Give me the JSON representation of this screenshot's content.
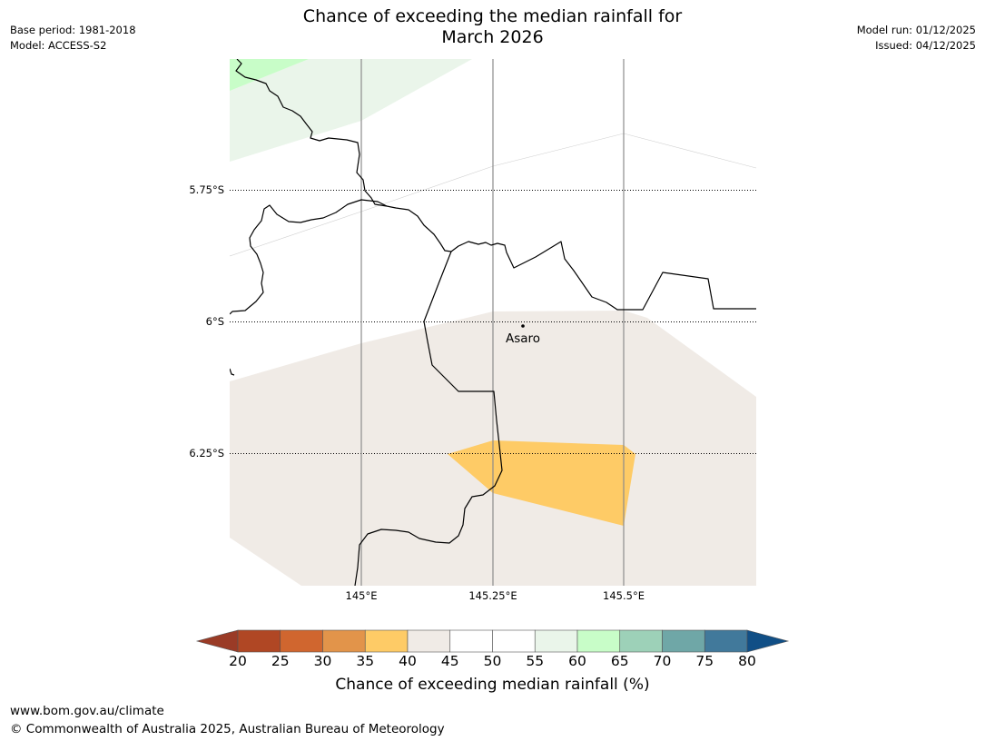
{
  "title": {
    "line1": "Chance of exceeding the median rainfall for",
    "line2": "March 2026"
  },
  "meta_left": {
    "base_period": "Base period: 1981-2018",
    "model": "Model: ACCESS-S2"
  },
  "meta_right": {
    "model_run": "Model run: 01/12/2025",
    "issued": "Issued: 04/12/2025"
  },
  "map": {
    "lat_labels": [
      "5.75°S",
      "6°S",
      "6.25°S"
    ],
    "lon_labels": [
      "145°E",
      "145.25°E",
      "145.5°E"
    ],
    "place": {
      "name": "Asaro"
    },
    "colors": {
      "category_40_45": "#f0ebe6",
      "category_35_40": "#fecb66",
      "category_55_60": "#eaf5ea",
      "category_60_65": "#c8fdc8",
      "border": "#000000",
      "meridian": "#808080"
    }
  },
  "colorbar": {
    "title": "Chance of exceeding median rainfall (%)",
    "ticks": [
      "20",
      "25",
      "30",
      "35",
      "40",
      "45",
      "50",
      "55",
      "60",
      "65",
      "70",
      "75",
      "80"
    ],
    "under_color": "#9a3b26",
    "over_color": "#114f86",
    "colors": [
      "#b04724",
      "#d0662f",
      "#e2944a",
      "#fecb66",
      "#f0ebe6",
      "#ffffff",
      "#ffffff",
      "#eaf5ea",
      "#c8fdc8",
      "#9dd1b8",
      "#6fa7a7",
      "#41799b"
    ]
  },
  "footer": {
    "url": "www.bom.gov.au/climate",
    "copyright": "© Commonwealth of Australia 2025, Australian Bureau of Meteorology"
  }
}
